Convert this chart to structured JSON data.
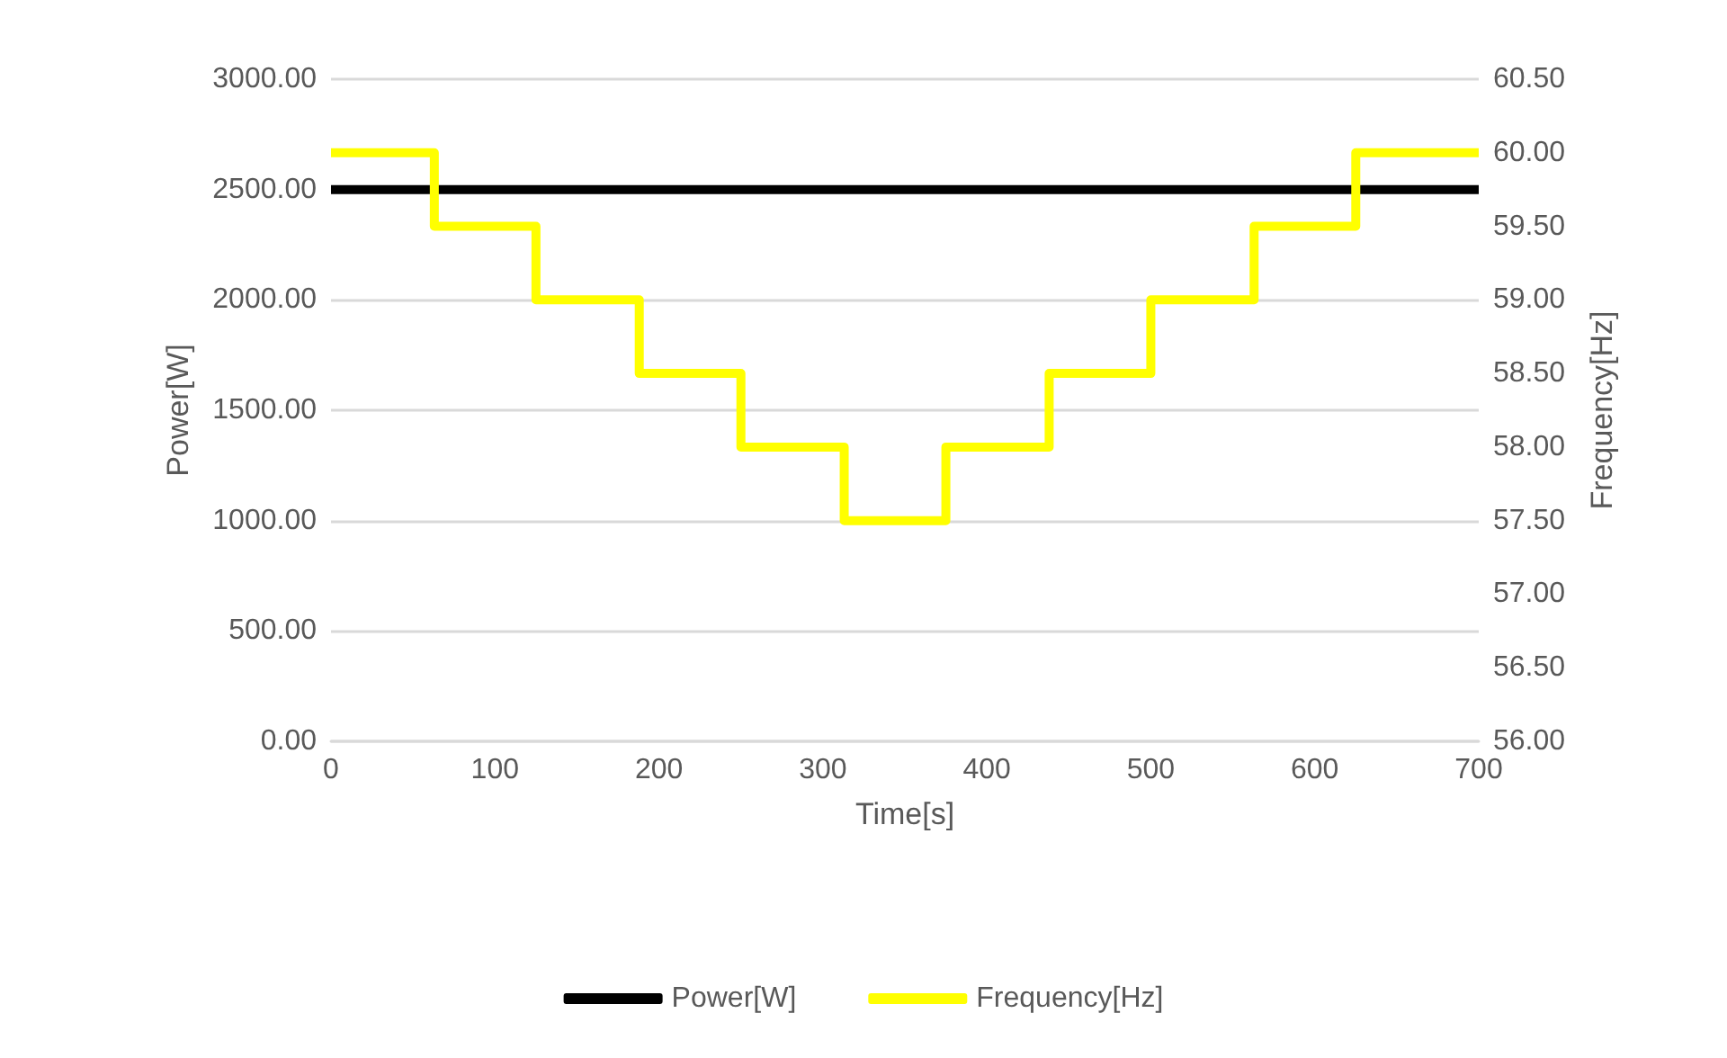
{
  "chart_data": {
    "type": "line",
    "xlabel": "Time[s]",
    "ylabel": "Power[W]",
    "y2label": "Frequency[Hz]",
    "series": [
      {
        "name": "Power[W]",
        "color": "#000000",
        "x": [
          0,
          700
        ],
        "values": [
          2500,
          2500
        ]
      },
      {
        "name": "Frequency[Hz]",
        "color": "#ffff00",
        "type": "step",
        "axis": "y2",
        "x": [
          0,
          63,
          125,
          188,
          250,
          313,
          375,
          438,
          500,
          563,
          625,
          700
        ],
        "values": [
          60,
          59.5,
          59,
          58.5,
          58,
          57.5,
          58,
          58.5,
          59,
          59.5,
          60,
          60
        ]
      }
    ],
    "xlim": [
      0,
      700
    ],
    "xticks": [
      0,
      100,
      200,
      300,
      400,
      500,
      600,
      700
    ],
    "ylim": [
      0,
      3000
    ],
    "yticks": [
      {
        "value": 0,
        "label": "0.00"
      },
      {
        "value": 500,
        "label": "500.00"
      },
      {
        "value": 1000,
        "label": "1000.00"
      },
      {
        "value": 1500,
        "label": "1500.00"
      },
      {
        "value": 2000,
        "label": "2000.00"
      },
      {
        "value": 2500,
        "label": "2500.00"
      },
      {
        "value": 3000,
        "label": "3000.00"
      }
    ],
    "y2lim": [
      56,
      60.5
    ],
    "y2ticks": [
      {
        "value": 56,
        "label": "56.00"
      },
      {
        "value": 56.5,
        "label": "56.50"
      },
      {
        "value": 57,
        "label": "57.00"
      },
      {
        "value": 57.5,
        "label": "57.50"
      },
      {
        "value": 58,
        "label": "58.00"
      },
      {
        "value": 58.5,
        "label": "58.50"
      },
      {
        "value": 59,
        "label": "59.00"
      },
      {
        "value": 59.5,
        "label": "59.50"
      },
      {
        "value": 60,
        "label": "60.00"
      },
      {
        "value": 60.5,
        "label": "60.50"
      }
    ],
    "grid": "y",
    "legend": "bottom",
    "marker": "none",
    "line_style": "solid"
  }
}
